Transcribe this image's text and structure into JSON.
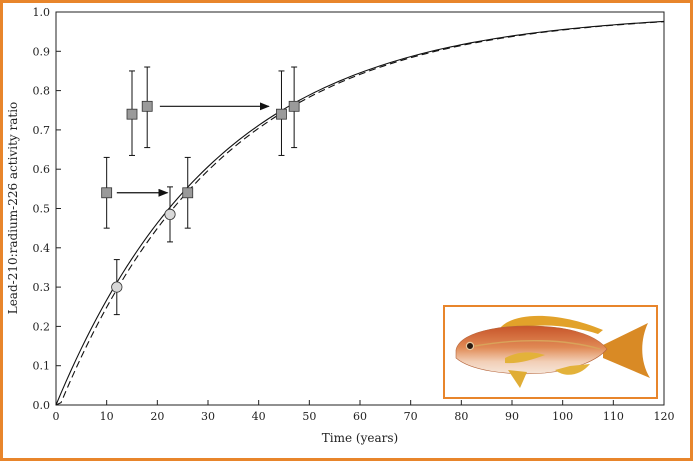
{
  "chart_data": {
    "type": "scatter",
    "title": "",
    "xlabel": "Time (years)",
    "ylabel": "Lead-210:radium-226 activity ratio",
    "xlim": [
      0,
      120
    ],
    "ylim": [
      0,
      1.0
    ],
    "xticks": [
      0,
      10,
      20,
      30,
      40,
      50,
      60,
      70,
      80,
      90,
      100,
      110,
      120
    ],
    "yticks": [
      0.0,
      0.1,
      0.2,
      0.3,
      0.4,
      0.5,
      0.6,
      0.7,
      0.8,
      0.9,
      1.0
    ],
    "grid": false,
    "series": [
      {
        "marker": "square",
        "points": [
          {
            "x": 10,
            "y": 0.54,
            "err_low": 0.45,
            "err_high": 0.63
          },
          {
            "x": 15,
            "y": 0.74,
            "err_low": 0.635,
            "err_high": 0.85
          },
          {
            "x": 18,
            "y": 0.76,
            "err_low": 0.655,
            "err_high": 0.86
          },
          {
            "x": 26,
            "y": 0.54,
            "err_low": 0.45,
            "err_high": 0.63
          },
          {
            "x": 44.5,
            "y": 0.74,
            "err_low": 0.635,
            "err_high": 0.85
          },
          {
            "x": 47,
            "y": 0.76,
            "err_low": 0.655,
            "err_high": 0.86
          }
        ]
      },
      {
        "marker": "circle",
        "points": [
          {
            "x": 12,
            "y": 0.3,
            "err_low": 0.23,
            "err_high": 0.37
          },
          {
            "x": 22.5,
            "y": 0.485,
            "err_low": 0.415,
            "err_high": 0.555
          }
        ]
      }
    ],
    "curves": [
      {
        "style": "solid",
        "model": "ingrowth",
        "half_life_years": 22.3
      },
      {
        "style": "dashed",
        "model": "ingrowth",
        "half_life_years": 22.3,
        "initial_ratio": 0,
        "lag_years": 0.8
      }
    ],
    "arrows": [
      {
        "from": [
          12,
          0.54
        ],
        "to": [
          22,
          0.54
        ]
      },
      {
        "from": [
          20.5,
          0.76
        ],
        "to": [
          42,
          0.76
        ]
      }
    ],
    "inset": {
      "image": "fish-illustration",
      "border_color": "#E8852B"
    },
    "colors": {
      "frame": "#E8852B",
      "square_fill": "#9a9a9a",
      "circle_fill": "#d8d8d8"
    }
  }
}
